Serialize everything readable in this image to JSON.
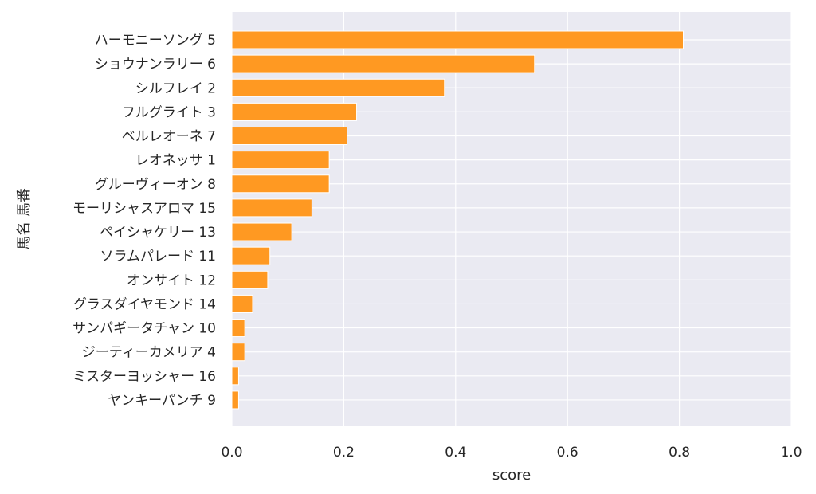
{
  "chart_data": {
    "type": "bar",
    "orientation": "horizontal",
    "xlabel": "score",
    "ylabel": "馬名 馬番",
    "xlim": [
      0,
      1.0
    ],
    "xticks": [
      "0.0",
      "0.2",
      "0.4",
      "0.6",
      "0.8",
      "1.0"
    ],
    "grid": true,
    "bar_color": "#ff9922",
    "background_color": "#eaeaf2",
    "categories": [
      "ハーモニーソング 5",
      "ショウナンラリー 6",
      "シルフレイ 2",
      "フルグライト 3",
      "ベルレオーネ 7",
      "レオネッサ 1",
      "グルーヴィーオン 8",
      "モーリシャスアロマ 15",
      "ペイシャケリー 13",
      "ソラムパレード 11",
      "オンサイト 12",
      "グラスダイヤモンド 14",
      "サンパギータチャン 10",
      "ジーティーカメリア 4",
      "ミスターヨッシャー 16",
      "ヤンキーパンチ 9"
    ],
    "values": [
      0.807,
      0.541,
      0.38,
      0.223,
      0.206,
      0.174,
      0.174,
      0.143,
      0.107,
      0.068,
      0.064,
      0.037,
      0.023,
      0.023,
      0.012,
      0.012
    ]
  }
}
